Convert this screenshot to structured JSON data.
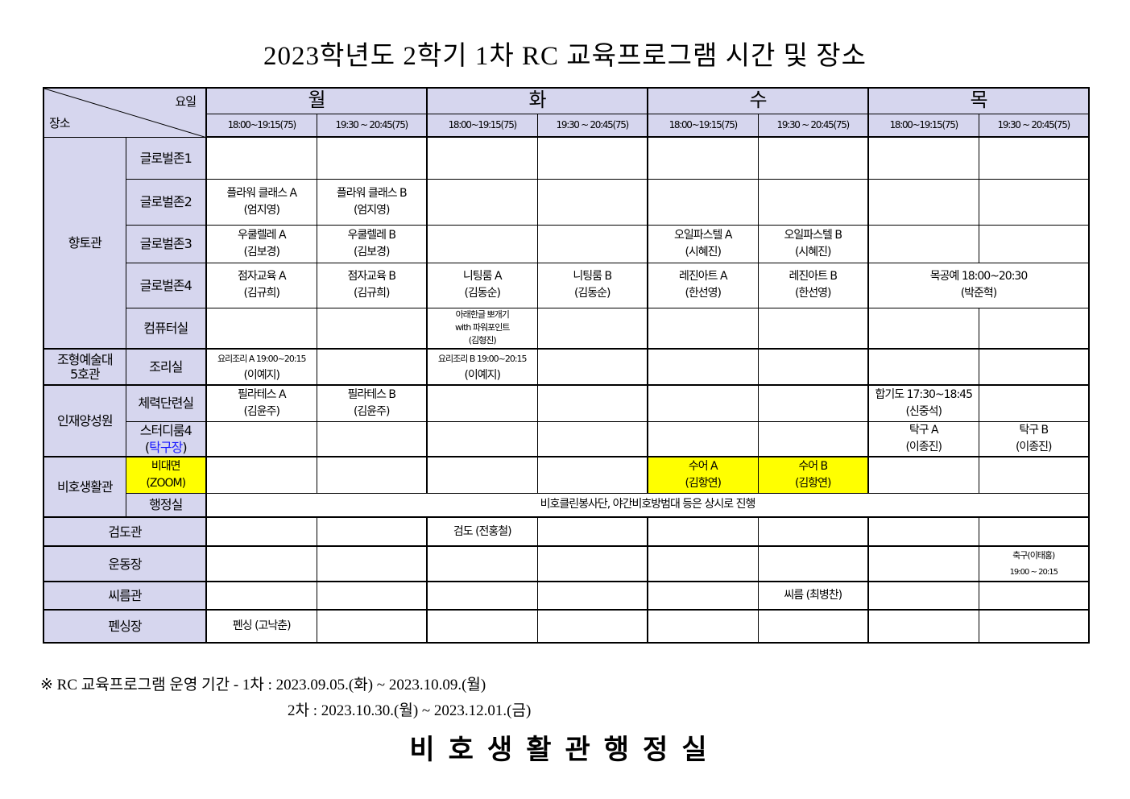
{
  "title": "2023학년도 2학기 1차 RC 교육프로그램 시간 및 장소",
  "header": {
    "corner_day": "요일",
    "corner_place": "장소",
    "days": [
      "월",
      "화",
      "수",
      "목"
    ],
    "slots": [
      "18:00~19:15(75)",
      "19:30 ~ 20:45(75)"
    ]
  },
  "rows": [
    {
      "group": "향토관",
      "group_rows": 5,
      "room": "글로벌존1",
      "cells": [
        [
          ""
        ],
        [
          ""
        ],
        [
          ""
        ],
        [
          ""
        ],
        [
          ""
        ],
        [
          ""
        ],
        [
          ""
        ],
        [
          ""
        ]
      ]
    },
    {
      "room": "글로벌존2",
      "cells": [
        [
          "플라워 클래스 A",
          "(엄지영)"
        ],
        [
          "플라워 클래스 B",
          "(엄지영)"
        ],
        [
          ""
        ],
        [
          ""
        ],
        [
          ""
        ],
        [
          ""
        ],
        [
          ""
        ],
        [
          ""
        ]
      ]
    },
    {
      "room": "글로벌존3",
      "cells": [
        [
          "우쿨렐레 A",
          "(김보경)"
        ],
        [
          "우쿨렐레 B",
          "(김보경)"
        ],
        [
          ""
        ],
        [
          ""
        ],
        [
          "오일파스텔 A",
          "(시혜진)"
        ],
        [
          "오일파스텔 B",
          "(시혜진)"
        ],
        [
          ""
        ],
        [
          ""
        ]
      ]
    },
    {
      "room": "글로벌존4",
      "cells": [
        [
          "점자교육 A",
          "(김규희)"
        ],
        [
          "점자교육 B",
          "(김규희)"
        ],
        [
          "니팅룸 A",
          "(김동순)"
        ],
        [
          "니팅룸 B",
          "(김동순)"
        ],
        [
          "레진아트 A",
          "(한선영)"
        ],
        [
          "레진아트 B",
          "(한선영)"
        ],
        {
          "text": [
            "목공예 18:00~20:30",
            "(박준혁)"
          ],
          "span": 2
        }
      ]
    },
    {
      "room": "컴퓨터실",
      "cells": [
        [
          ""
        ],
        [
          ""
        ],
        {
          "text": [
            "아래한글 뽀개기",
            "with 파워포인트",
            "(김형진)"
          ],
          "style": "small"
        },
        [
          ""
        ],
        [
          ""
        ],
        [
          ""
        ],
        [
          ""
        ],
        [
          ""
        ]
      ]
    },
    {
      "group": "조형예술대\n5호관",
      "group_rows": 1,
      "room": "조리실",
      "cells": [
        {
          "text": [
            "요리조리 A 19:00~20:15",
            "(이예지)"
          ],
          "style": "mixed"
        },
        [
          ""
        ],
        {
          "text": [
            "요리조리 B 19:00~20:15",
            "(이예지)"
          ],
          "style": "mixed"
        },
        [
          ""
        ],
        [
          ""
        ],
        [
          ""
        ],
        [
          ""
        ],
        [
          ""
        ]
      ]
    },
    {
      "group": "인재양성원",
      "group_rows": 2,
      "room": "체력단련실",
      "cells": [
        [
          "필라테스 A",
          "(김윤주)"
        ],
        [
          "필라테스 B",
          "(김윤주)"
        ],
        [
          ""
        ],
        [
          ""
        ],
        [
          ""
        ],
        [
          ""
        ],
        [
          "합기도 17:30~18:45",
          "(신중석)"
        ],
        [
          ""
        ]
      ]
    },
    {
      "room": "스터디룸4",
      "room_sub": "탁구장",
      "cells": [
        [
          ""
        ],
        [
          ""
        ],
        [
          ""
        ],
        [
          ""
        ],
        [
          ""
        ],
        [
          ""
        ],
        [
          "탁구 A",
          "(이종진)"
        ],
        [
          "탁구 B",
          "(이종진)"
        ]
      ]
    },
    {
      "group": "비호생활관",
      "group_rows": 2,
      "room": "비대면",
      "room_sub_plain": "(ZOOM)",
      "room_highlight": true,
      "cells": [
        [
          ""
        ],
        [
          ""
        ],
        [
          ""
        ],
        [
          ""
        ],
        {
          "text": [
            "수어 A",
            "(김항연)"
          ],
          "highlight": true
        },
        {
          "text": [
            "수어 B",
            "(김항연)"
          ],
          "highlight": true
        },
        [
          ""
        ],
        [
          ""
        ]
      ]
    },
    {
      "room": "행정실",
      "cells": [
        {
          "text": [
            "비호클린봉사단, 야간비호방범대 등은 상시로 진행"
          ],
          "span": 8
        }
      ]
    },
    {
      "place": "검도관",
      "cells": [
        [
          ""
        ],
        [
          ""
        ],
        [
          "검도 (전홍철)"
        ],
        [
          ""
        ],
        [
          ""
        ],
        [
          ""
        ],
        [
          ""
        ],
        [
          ""
        ]
      ]
    },
    {
      "place": "운동장",
      "cells": [
        [
          ""
        ],
        [
          ""
        ],
        [
          ""
        ],
        [
          ""
        ],
        [
          ""
        ],
        [
          ""
        ],
        [
          ""
        ],
        {
          "text": [
            "축구(이태홍)",
            "19:00 ~ 20:15"
          ],
          "style": "mixed"
        }
      ]
    },
    {
      "place": "씨름관",
      "cells": [
        [
          ""
        ],
        [
          ""
        ],
        [
          ""
        ],
        [
          ""
        ],
        [
          ""
        ],
        [
          "씨름 (최병찬)"
        ],
        [
          ""
        ],
        [
          ""
        ]
      ]
    },
    {
      "place": "펜싱장",
      "cells": [
        [
          "펜싱 (고낙춘)"
        ],
        [
          ""
        ],
        [
          ""
        ],
        [
          ""
        ],
        [
          ""
        ],
        [
          ""
        ],
        [
          ""
        ],
        [
          ""
        ]
      ]
    }
  ],
  "notes": {
    "line1": "※ RC 교육프로그램 운영 기간 - 1차 : 2023.09.05.(화) ~ 2023.10.09.(월)",
    "line2": "2차 : 2023.10.30.(월) ~ 2023.12.01.(금)"
  },
  "footer": "비호생활관행정실",
  "colors": {
    "header_bg": "#d6d6ee",
    "highlight": "#ffff00",
    "blue_text": "#1a1aff"
  }
}
